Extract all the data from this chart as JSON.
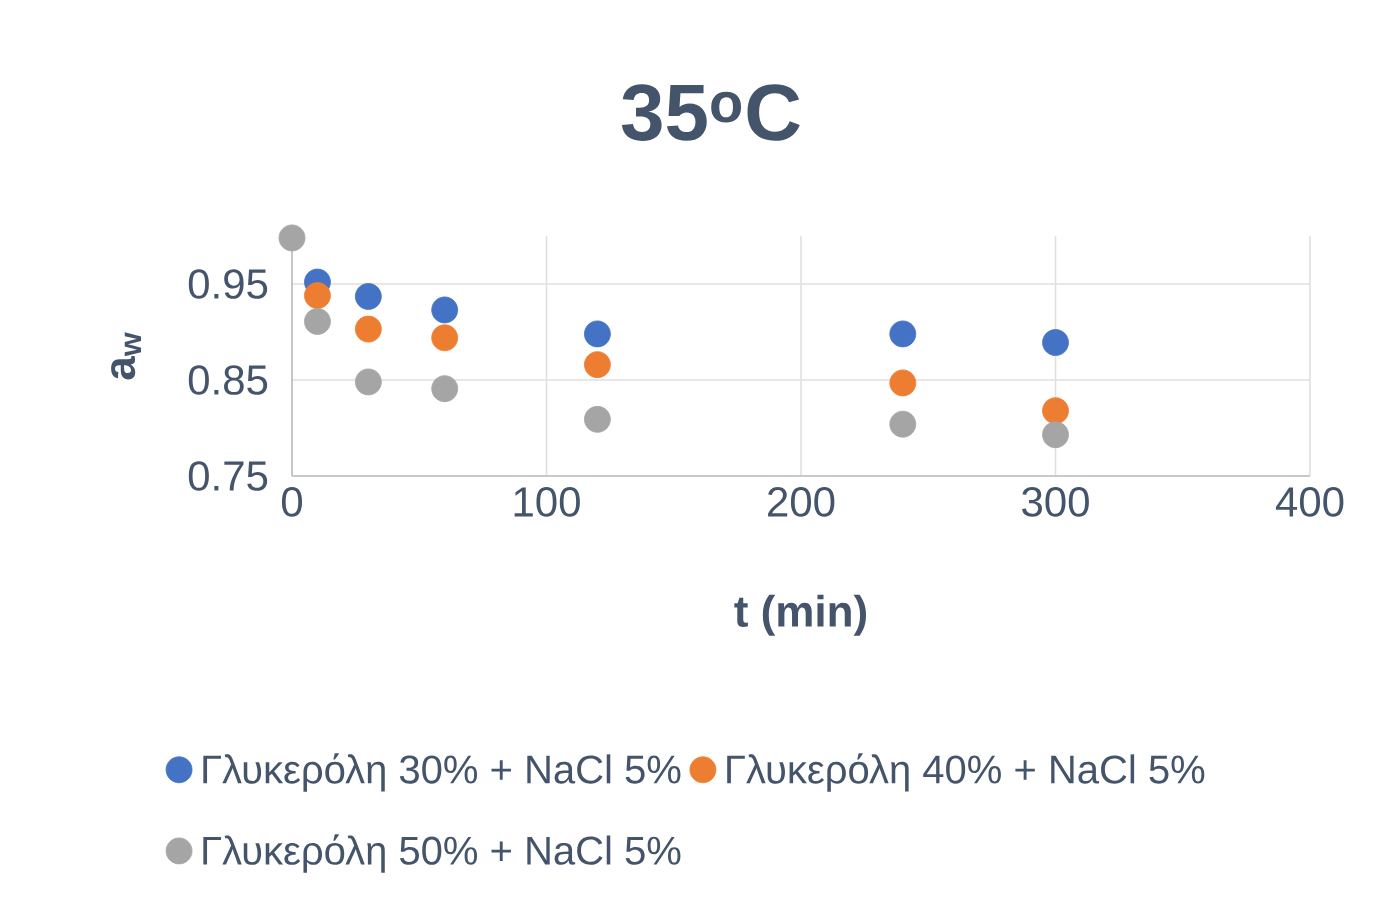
{
  "chart_data": {
    "type": "scatter",
    "title": "35$^{o}$C",
    "xlabel": "t (min)",
    "ylabel": "a$_{w}$",
    "x": [
      0,
      10,
      30,
      60,
      120,
      240,
      300
    ],
    "series": [
      {
        "name": "Γλυκερόλη 30% + NaCl 5%",
        "color": "#4472c4",
        "values": [
          null,
          0.952,
          0.937,
          0.923,
          0.898,
          0.898,
          0.889
        ]
      },
      {
        "name": "Γλυκερόλη 40% + NaCl 5%",
        "color": "#ed7d31",
        "values": [
          null,
          0.938,
          0.903,
          0.894,
          0.866,
          0.847,
          0.818
        ]
      },
      {
        "name": "Γλυκερόλη 50% + NaCl 5%",
        "color": "#a5a5a5",
        "values": [
          0.998,
          0.911,
          0.848,
          0.841,
          0.809,
          0.804,
          0.793
        ]
      }
    ],
    "xlim": [
      0,
      400
    ],
    "xticks": [
      0,
      100,
      200,
      300,
      400
    ],
    "ylim": [
      0.75,
      1.0
    ],
    "yticks": [
      0.75,
      0.85,
      0.95
    ],
    "grid": true,
    "legend": "bottom",
    "marker": "circle"
  }
}
